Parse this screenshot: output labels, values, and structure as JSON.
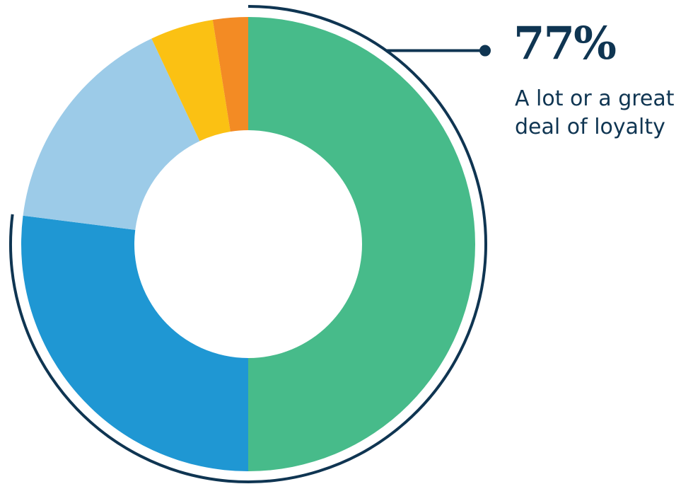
{
  "chart_data": {
    "type": "pie",
    "donut": true,
    "legend": "none",
    "slices": [
      {
        "value": 50,
        "color": "#47bb8a"
      },
      {
        "value": 27,
        "color": "#1f97d3"
      },
      {
        "value": 16,
        "color": "#9ccbe8"
      },
      {
        "value": 4.5,
        "color": "#fbc113"
      },
      {
        "value": 2.5,
        "color": "#f38b24"
      }
    ],
    "highlight": {
      "value_label": "77%",
      "label": "A lot or a great deal of loyalty",
      "slices": [
        0,
        1
      ],
      "color": "#0f3552"
    }
  }
}
